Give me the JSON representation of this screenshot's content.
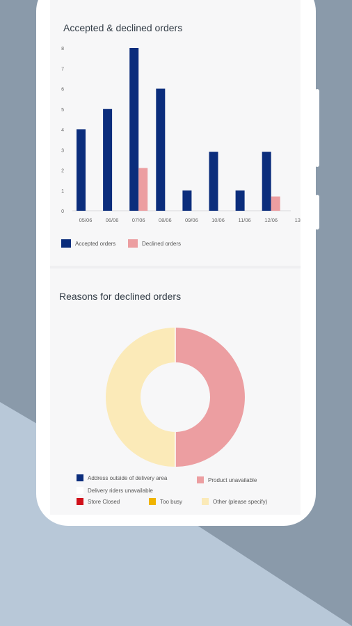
{
  "colors": {
    "accepted": "#0b2d7c",
    "declined": "#ec9ea1",
    "address_outside": "#0b2d7c",
    "product_unavailable": "#ec9ea1",
    "store_closed": "#d0101a",
    "too_busy": "#f0b400",
    "other": "#fbeab8",
    "delivery_riders": "#ffffff"
  },
  "chart1": {
    "title": "Accepted & declined orders",
    "legend": {
      "accepted": "Accepted orders",
      "declined": "Declined orders"
    }
  },
  "chart2": {
    "title": "Reasons for declined orders",
    "legend": {
      "address_outside": "Address outside of delivery area",
      "product_unavailable": "Product unavailable",
      "delivery_riders": "Delivery riders unavailable",
      "store_closed": "Store Closed",
      "too_busy": "Too busy",
      "other": "Other (please specify)"
    }
  },
  "chart_data": [
    {
      "type": "bar",
      "title": "Accepted & declined orders",
      "categories": [
        "05/06",
        "06/06",
        "07/06",
        "08/06",
        "09/06",
        "10/06",
        "11/06",
        "12/06",
        "13"
      ],
      "series": [
        {
          "name": "Accepted orders",
          "values": [
            4,
            5,
            8,
            6,
            1,
            2.9,
            1,
            2.9,
            0
          ]
        },
        {
          "name": "Declined orders",
          "values": [
            0,
            0,
            2.1,
            0,
            0,
            0,
            0,
            0.7,
            0
          ]
        }
      ],
      "yticks": [
        "0",
        "1",
        "2",
        "3",
        "4",
        "5",
        "6",
        "7",
        "8"
      ],
      "ylim": [
        0,
        8
      ],
      "legend_position": "bottom-left"
    },
    {
      "type": "pie",
      "title": "Reasons for declined orders",
      "labels": [
        "Product unavailable",
        "Other (please specify)"
      ],
      "values": [
        50,
        50
      ],
      "donut": true
    }
  ]
}
